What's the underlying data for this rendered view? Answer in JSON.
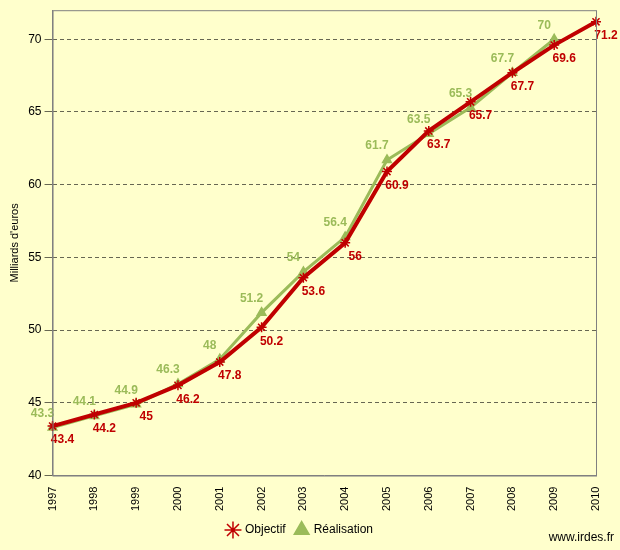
{
  "chart_data": {
    "type": "line",
    "ylabel": "Milliards d'euros",
    "categories": [
      "1997",
      "1998",
      "1999",
      "2000",
      "2001",
      "2002",
      "2003",
      "2004",
      "2005",
      "2006",
      "2007",
      "2008",
      "2009",
      "2010"
    ],
    "series": [
      {
        "name": "Objectif",
        "color": "#c00000",
        "marker": "star",
        "values": [
          43.4,
          44.2,
          45,
          46.2,
          47.8,
          50.2,
          53.6,
          56,
          60.9,
          63.7,
          65.7,
          67.7,
          69.6,
          71.2
        ]
      },
      {
        "name": "Réalisation",
        "color": "#9bbb59",
        "marker": "triangle",
        "values": [
          43.3,
          44.1,
          44.9,
          46.3,
          48,
          51.2,
          54,
          56.4,
          61.7,
          63.5,
          65.3,
          67.7,
          70,
          null
        ]
      }
    ],
    "ylim": [
      40,
      72
    ],
    "yticks": [
      40,
      45,
      50,
      55,
      60,
      65,
      70
    ],
    "grid": true,
    "legend": "bottom",
    "data_labels": true,
    "annotations": [
      "www.irdes.fr"
    ]
  }
}
